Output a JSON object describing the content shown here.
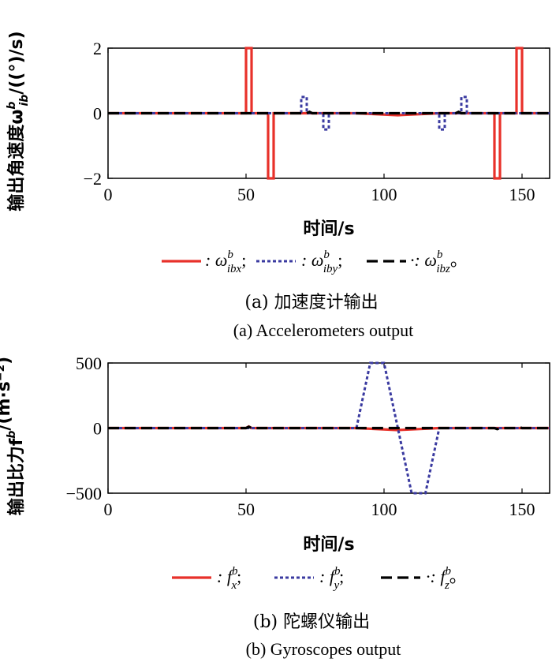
{
  "chart_data": [
    {
      "type": "line",
      "ylabel": "输出角速度ω",
      "ylabel_sup": "b",
      "ylabel_sub": "ib",
      "ylabel_unit": "/((°)/s)",
      "xlabel": "时间/s",
      "xlim": [
        0,
        160
      ],
      "ylim": [
        -2,
        2
      ],
      "xticks": [
        0,
        50,
        100,
        150
      ],
      "yticks": [
        -2,
        0,
        2
      ],
      "legend": [
        {
          "series": 0,
          "prefix": ": ω",
          "sup": "b",
          "sub": "ibx",
          "suffix": ";"
        },
        {
          "series": 1,
          "prefix": ": ω",
          "sup": "b",
          "sub": "iby",
          "suffix": ";"
        },
        {
          "series": 2,
          "prefix": "·: ω",
          "sup": "b",
          "sub": "ibz",
          "suffix": "。"
        }
      ],
      "series": [
        {
          "color": "#e8312a",
          "style": "solid",
          "x": [
            0,
            50,
            50,
            52,
            52,
            58,
            58,
            60,
            60,
            90,
            105,
            120,
            140,
            140,
            142,
            142,
            148,
            148,
            150,
            150,
            160
          ],
          "y": [
            0,
            0,
            2,
            2,
            0,
            0,
            -2,
            -2,
            0,
            0,
            -0.06,
            0,
            0,
            -2,
            -2,
            0,
            0,
            2,
            2,
            0,
            0
          ]
        },
        {
          "color": "#3a3aa0",
          "style": "dotted",
          "x": [
            0,
            70,
            70,
            72,
            72,
            78,
            78,
            80,
            80,
            120,
            120,
            122,
            122,
            128,
            128,
            130,
            130,
            160
          ],
          "y": [
            0,
            0,
            0.5,
            0.5,
            0,
            0,
            -0.5,
            -0.5,
            0,
            0,
            -0.5,
            -0.5,
            0,
            0,
            0.5,
            0.5,
            0,
            0
          ]
        },
        {
          "color": "#000000",
          "style": "dashed",
          "x": [
            0,
            72,
            73,
            74,
            126,
            127,
            128,
            160
          ],
          "y": [
            0,
            0,
            0.04,
            0,
            0,
            0.04,
            0,
            0
          ]
        }
      ],
      "caption_zh": "(a) 加速度计输出",
      "caption_en": "(a) Accelerometers output"
    },
    {
      "type": "line",
      "ylabel": "输出比力f",
      "ylabel_sup": "b",
      "ylabel_sub": "",
      "ylabel_unit": "/(m·s⁻²)",
      "xlabel": "时间/s",
      "xlim": [
        0,
        160
      ],
      "ylim": [
        -500,
        500
      ],
      "xticks": [
        0,
        50,
        100,
        150
      ],
      "yticks": [
        -500,
        0,
        500
      ],
      "legend": [
        {
          "series": 0,
          "prefix": ": f",
          "sup": "b",
          "sub": "x",
          "suffix": ";"
        },
        {
          "series": 1,
          "prefix": ": f",
          "sup": "b",
          "sub": "y",
          "suffix": ";"
        },
        {
          "series": 2,
          "prefix": "·: f",
          "sup": "b",
          "sub": "z",
          "suffix": "。"
        }
      ],
      "series": [
        {
          "color": "#e8312a",
          "style": "solid",
          "x": [
            0,
            50,
            51,
            52,
            90,
            105,
            120,
            160
          ],
          "y": [
            0,
            0,
            12,
            0,
            0,
            -15,
            0,
            0
          ]
        },
        {
          "color": "#3a3aa0",
          "style": "dotted",
          "x": [
            0,
            90,
            95,
            100,
            110,
            115,
            120,
            160
          ],
          "y": [
            0,
            0,
            500,
            500,
            -500,
            -500,
            0,
            0
          ]
        },
        {
          "color": "#000000",
          "style": "dashed",
          "x": [
            0,
            50,
            51,
            52,
            58,
            59,
            60,
            140,
            141,
            142,
            148,
            149,
            150,
            160
          ],
          "y": [
            0,
            0,
            10,
            0,
            0,
            -8,
            0,
            0,
            -8,
            0,
            0,
            8,
            0,
            0
          ]
        }
      ],
      "caption_zh": "(b) 陀螺仪输出",
      "caption_en": "(b) Gyroscopes output"
    }
  ]
}
